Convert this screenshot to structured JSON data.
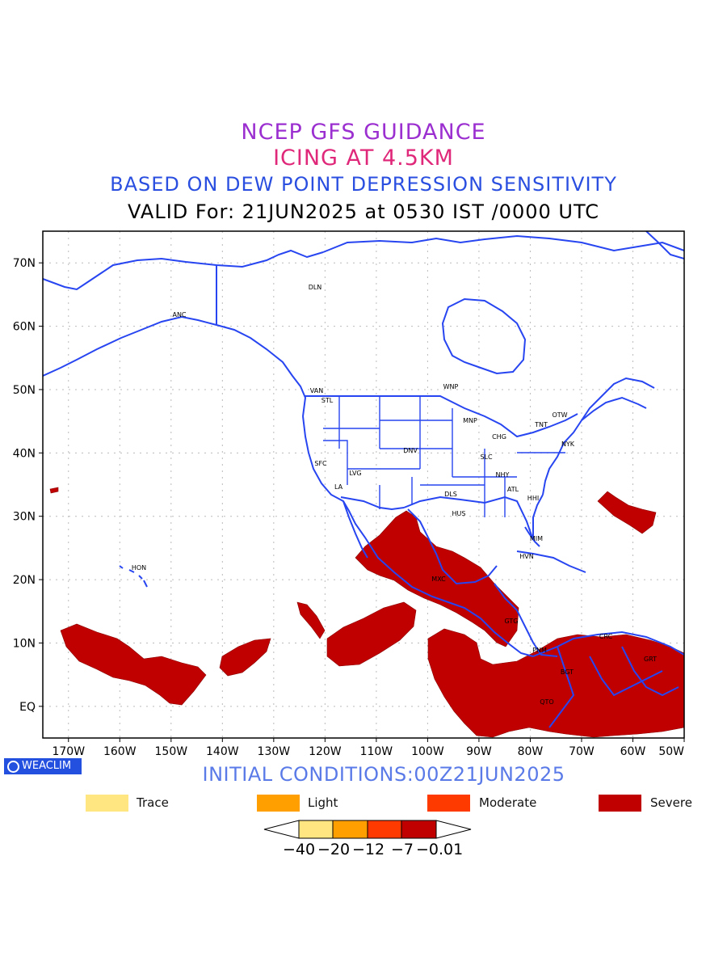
{
  "titles": {
    "line1": "NCEP GFS GUIDANCE",
    "line2": "ICING AT 4.5KM",
    "line3": "BASED ON DEW POINT DEPRESSION SENSITIVITY",
    "line4": "VALID For: 21JUN2025 at 0530 IST /0000 UTC"
  },
  "map": {
    "lat_labels": [
      "70N",
      "60N",
      "50N",
      "40N",
      "30N",
      "20N",
      "10N",
      "EQ"
    ],
    "lon_labels": [
      "170W",
      "160W",
      "150W",
      "140W",
      "130W",
      "120W",
      "110W",
      "100W",
      "90W",
      "80W",
      "70W",
      "60W",
      "50W"
    ],
    "cities": [
      "ANC",
      "DLN",
      "VAN",
      "STL",
      "WNP",
      "MNP",
      "OTW",
      "TNT",
      "CHG",
      "NYK",
      "DNV",
      "SFC",
      "LVG",
      "LA",
      "SLC",
      "NHY",
      "ATL",
      "DLS",
      "HUS",
      "HHI",
      "MIM",
      "HVN",
      "HON",
      "MXC",
      "GTG",
      "PNM",
      "BGT",
      "CRC",
      "GRT",
      "QTO"
    ],
    "city_names": [],
    "grid": true
  },
  "legend": {
    "items": [
      {
        "label": "Trace",
        "color": "#ffe680"
      },
      {
        "label": "Light",
        "color": "#ffa000"
      },
      {
        "label": "Moderate",
        "color": "#ff3a00"
      },
      {
        "label": "Severe",
        "color": "#c00000"
      }
    ]
  },
  "colorbar": {
    "labels": [
      "−40",
      "−20",
      "−12",
      "−7",
      "−0.01"
    ],
    "colors": [
      "#ffe680",
      "#ffa000",
      "#ff3a00",
      "#c00000"
    ]
  },
  "footer": {
    "initial_conditions": "INITIAL CONDITIONS:00Z21JUN2025",
    "logo": "WEACLIM"
  }
}
